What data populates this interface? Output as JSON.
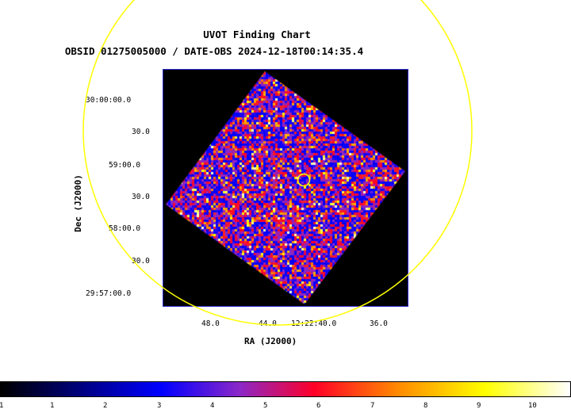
{
  "header": {
    "title": "UVOT Finding Chart",
    "subtitle": "OBSID 01275005000 / DATE-OBS 2024-12-18T00:14:35.4"
  },
  "axes": {
    "ra_label": "RA (J2000)",
    "dec_label": "Dec (J2000)",
    "ra_ticks": [
      "48.0",
      "44.0",
      "12:22:40.0",
      "36.0"
    ],
    "dec_ticks": [
      "30:00:00.0",
      "30.0",
      "59:00.0",
      "30.0",
      "58:00.0",
      "30.0",
      "29:57:00.0"
    ]
  },
  "colorbar": {
    "ticks": [
      "1",
      "1",
      "2",
      "3",
      "4",
      "5",
      "6",
      "7",
      "8",
      "9",
      "10"
    ]
  },
  "colors": {
    "circle": "#ffff00",
    "frame": "#2a2ad0",
    "background": "#000000"
  }
}
